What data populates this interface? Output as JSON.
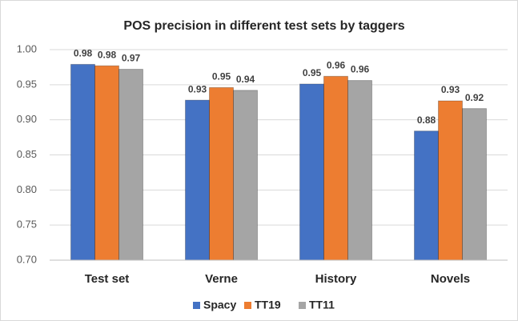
{
  "chart_data": {
    "type": "bar",
    "title": "POS precision in different test sets by taggers",
    "categories": [
      "Test set",
      "Verne",
      "History",
      "Novels"
    ],
    "series": [
      {
        "name": "Spacy",
        "color": "#4472c4",
        "values": [
          0.979,
          0.928,
          0.951,
          0.884
        ],
        "value_labels": [
          "0.98",
          "0.93",
          "0.95",
          "0.88"
        ]
      },
      {
        "name": "TT19",
        "color": "#ed7d31",
        "values": [
          0.977,
          0.946,
          0.962,
          0.927
        ],
        "value_labels": [
          "0.98",
          "0.95",
          "0.96",
          "0.93"
        ]
      },
      {
        "name": "TT11",
        "color": "#a5a5a5",
        "values": [
          0.972,
          0.942,
          0.956,
          0.916
        ],
        "value_labels": [
          "0.97",
          "0.94",
          "0.96",
          "0.92"
        ]
      }
    ],
    "ylim": [
      0.7,
      1.0
    ],
    "yticks": [
      {
        "value": 0.7,
        "label": "0.70"
      },
      {
        "value": 0.75,
        "label": "0.75"
      },
      {
        "value": 0.8,
        "label": "0.80"
      },
      {
        "value": 0.85,
        "label": "0.85"
      },
      {
        "value": 0.9,
        "label": "0.90"
      },
      {
        "value": 0.95,
        "label": "0.95"
      },
      {
        "value": 1.0,
        "label": "1.00"
      }
    ],
    "grid": true,
    "legend": "bottom"
  }
}
